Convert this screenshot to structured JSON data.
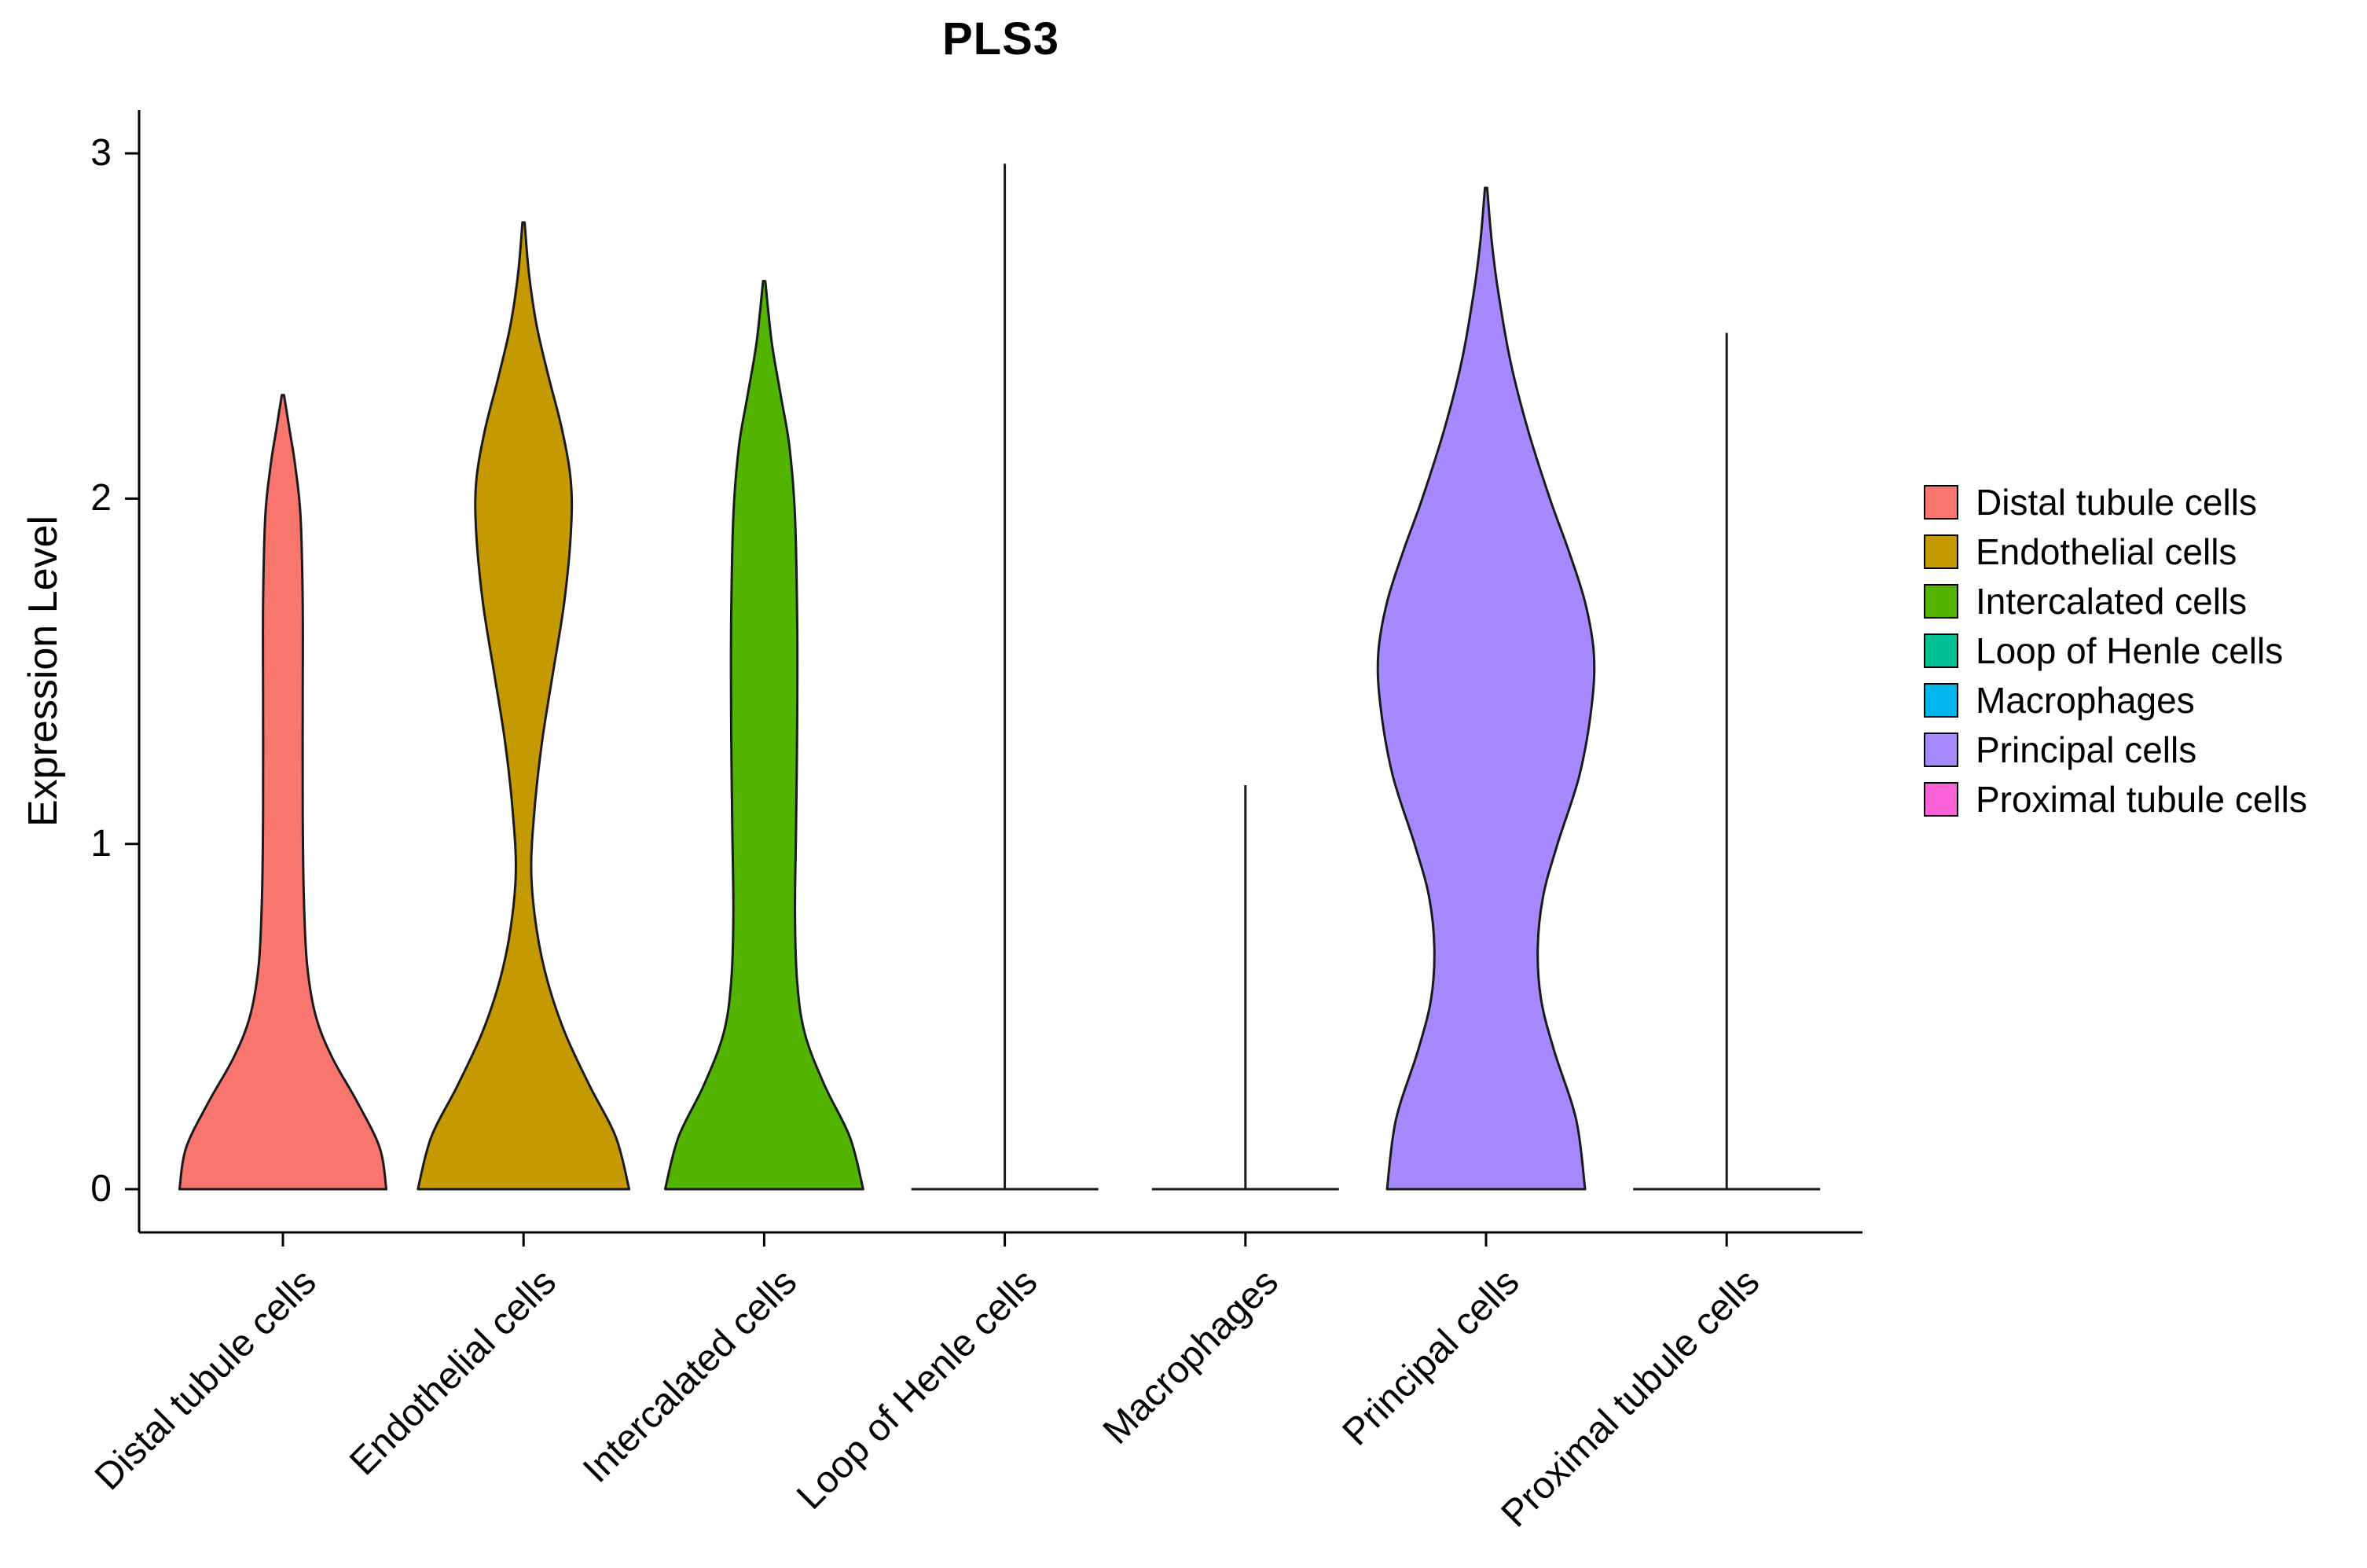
{
  "page": {
    "background": "#ffffff"
  },
  "chart_data": {
    "type": "violin",
    "title": "PLS3",
    "ylabel": "Expression Level",
    "xlabel": "",
    "ylim": [
      0,
      3.05
    ],
    "yticks": [
      0,
      1,
      2,
      3
    ],
    "grid": false,
    "legend_position": "right",
    "axis_color": "#000000",
    "violin_outline_color": "#1a1a1a",
    "categories": [
      "Distal tubule cells",
      "Endothelial cells",
      "Intercalated cells",
      "Loop of Henle cells",
      "Macrophages",
      "Principal cells",
      "Proximal tubule cells"
    ],
    "series": [
      {
        "name": "Distal tubule cells",
        "color": "#F8766D",
        "shape": "violin",
        "max_expression": 2.3,
        "profile": [
          [
            0,
            0.94
          ],
          [
            0.12,
            0.88
          ],
          [
            0.25,
            0.68
          ],
          [
            0.38,
            0.45
          ],
          [
            0.5,
            0.3
          ],
          [
            0.65,
            0.22
          ],
          [
            0.85,
            0.19
          ],
          [
            1.1,
            0.18
          ],
          [
            1.4,
            0.18
          ],
          [
            1.7,
            0.18
          ],
          [
            1.95,
            0.16
          ],
          [
            2.1,
            0.11
          ],
          [
            2.2,
            0.06
          ],
          [
            2.3,
            0.01
          ]
        ]
      },
      {
        "name": "Endothelial cells",
        "color": "#C49A00",
        "shape": "violin",
        "max_expression": 2.8,
        "profile": [
          [
            0,
            0.96
          ],
          [
            0.15,
            0.84
          ],
          [
            0.3,
            0.6
          ],
          [
            0.45,
            0.38
          ],
          [
            0.6,
            0.22
          ],
          [
            0.75,
            0.12
          ],
          [
            0.92,
            0.07
          ],
          [
            1.1,
            0.1
          ],
          [
            1.3,
            0.17
          ],
          [
            1.5,
            0.27
          ],
          [
            1.7,
            0.37
          ],
          [
            1.9,
            0.43
          ],
          [
            2.05,
            0.43
          ],
          [
            2.2,
            0.35
          ],
          [
            2.35,
            0.23
          ],
          [
            2.5,
            0.12
          ],
          [
            2.65,
            0.05
          ],
          [
            2.8,
            0.01
          ]
        ]
      },
      {
        "name": "Intercalated cells",
        "color": "#53B400",
        "shape": "violin",
        "max_expression": 2.63,
        "profile": [
          [
            0,
            0.9
          ],
          [
            0.15,
            0.78
          ],
          [
            0.3,
            0.55
          ],
          [
            0.45,
            0.37
          ],
          [
            0.6,
            0.3
          ],
          [
            0.8,
            0.28
          ],
          [
            1.05,
            0.29
          ],
          [
            1.35,
            0.3
          ],
          [
            1.65,
            0.3
          ],
          [
            1.95,
            0.28
          ],
          [
            2.15,
            0.23
          ],
          [
            2.3,
            0.15
          ],
          [
            2.45,
            0.07
          ],
          [
            2.63,
            0.01
          ]
        ]
      },
      {
        "name": "Loop of Henle cells",
        "color": "#00C094",
        "shape": "spike",
        "max_expression": 2.97,
        "base_halfwidth": 0.85
      },
      {
        "name": "Macrophages",
        "color": "#00B6EB",
        "shape": "spike",
        "max_expression": 1.17,
        "base_halfwidth": 0.85
      },
      {
        "name": "Principal cells",
        "color": "#A58AFF",
        "shape": "violin",
        "max_expression": 2.9,
        "profile": [
          [
            0,
            0.9
          ],
          [
            0.2,
            0.82
          ],
          [
            0.4,
            0.62
          ],
          [
            0.55,
            0.5
          ],
          [
            0.7,
            0.47
          ],
          [
            0.85,
            0.52
          ],
          [
            1.0,
            0.65
          ],
          [
            1.2,
            0.85
          ],
          [
            1.4,
            0.96
          ],
          [
            1.55,
            0.98
          ],
          [
            1.7,
            0.9
          ],
          [
            1.85,
            0.75
          ],
          [
            2.0,
            0.58
          ],
          [
            2.2,
            0.38
          ],
          [
            2.4,
            0.22
          ],
          [
            2.6,
            0.11
          ],
          [
            2.75,
            0.05
          ],
          [
            2.9,
            0.01
          ]
        ]
      },
      {
        "name": "Proximal tubule cells",
        "color": "#FB61D7",
        "shape": "spike",
        "max_expression": 2.48,
        "base_halfwidth": 0.85
      }
    ]
  }
}
